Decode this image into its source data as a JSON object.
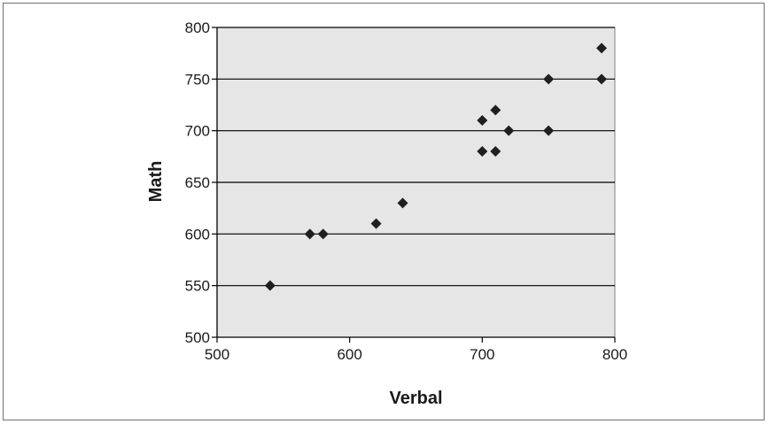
{
  "chart_data": {
    "type": "scatter",
    "title": "",
    "xlabel": "Verbal",
    "ylabel": "Math",
    "xlim": [
      500,
      800
    ],
    "ylim": [
      500,
      800
    ],
    "xticks": [
      "500",
      "600",
      "700",
      "800"
    ],
    "yticks": [
      "500",
      "550",
      "600",
      "650",
      "700",
      "750",
      "800"
    ],
    "grid": "horizontal",
    "marker": "diamond",
    "colors": {
      "plot_background": "#e6e6e6",
      "marker": "#1f1f1f",
      "gridline": "#000000"
    },
    "points": [
      {
        "x": 540,
        "y": 550
      },
      {
        "x": 570,
        "y": 600
      },
      {
        "x": 580,
        "y": 600
      },
      {
        "x": 620,
        "y": 610
      },
      {
        "x": 640,
        "y": 630
      },
      {
        "x": 700,
        "y": 710
      },
      {
        "x": 700,
        "y": 680
      },
      {
        "x": 710,
        "y": 720
      },
      {
        "x": 710,
        "y": 680
      },
      {
        "x": 720,
        "y": 700
      },
      {
        "x": 750,
        "y": 750
      },
      {
        "x": 750,
        "y": 700
      },
      {
        "x": 790,
        "y": 780
      },
      {
        "x": 790,
        "y": 750
      }
    ]
  }
}
